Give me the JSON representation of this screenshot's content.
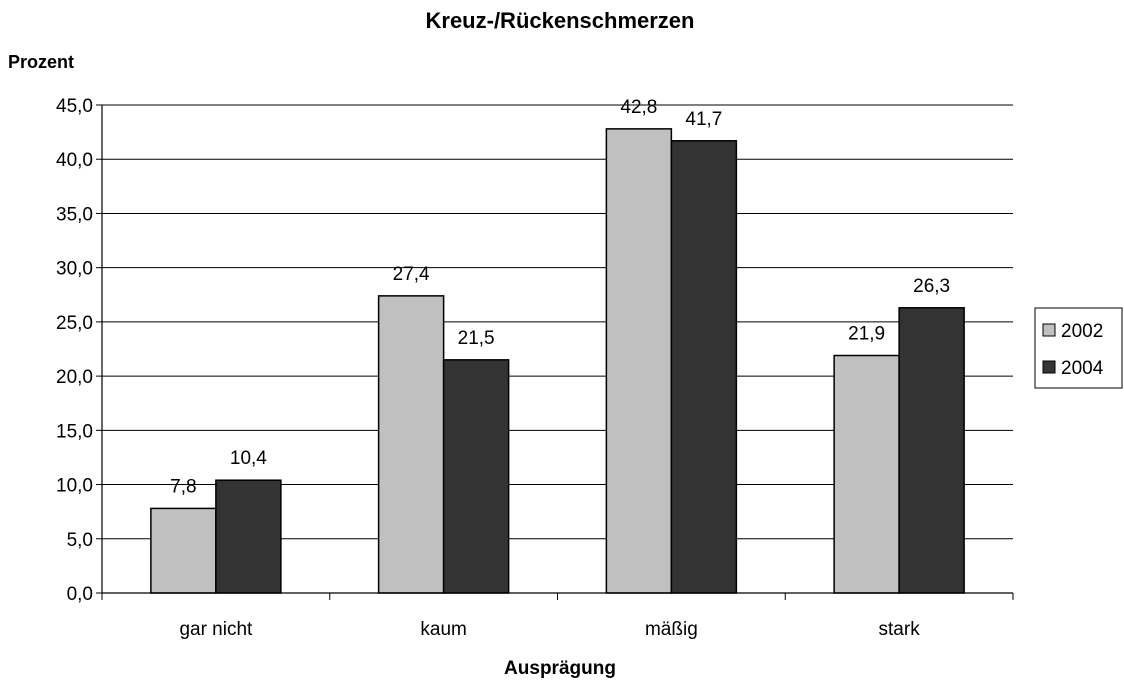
{
  "chart_data": {
    "type": "bar",
    "title": "Kreuz-/Rückenschmerzen",
    "ylabel": "Prozent",
    "xlabel": "Ausprägung",
    "categories": [
      "gar nicht",
      "kaum",
      "mäßig",
      "stark"
    ],
    "series": [
      {
        "name": "2002",
        "values": [
          7.8,
          27.4,
          42.8,
          21.9
        ],
        "labels": [
          "7,8",
          "27,4",
          "42,8",
          "21,9"
        ],
        "color": "#c0c0c0"
      },
      {
        "name": "2004",
        "values": [
          10.4,
          21.5,
          41.7,
          26.3
        ],
        "labels": [
          "10,4",
          "21,5",
          "41,7",
          "26,3"
        ],
        "color": "#333333"
      }
    ],
    "ylim": [
      0,
      45
    ],
    "yticks": [
      0,
      5,
      10,
      15,
      20,
      25,
      30,
      35,
      40,
      45
    ],
    "ytick_labels": [
      "0,0",
      "5,0",
      "10,0",
      "15,0",
      "20,0",
      "25,0",
      "30,0",
      "35,0",
      "40,0",
      "45,0"
    ],
    "grid": true,
    "legend_position": "right"
  }
}
